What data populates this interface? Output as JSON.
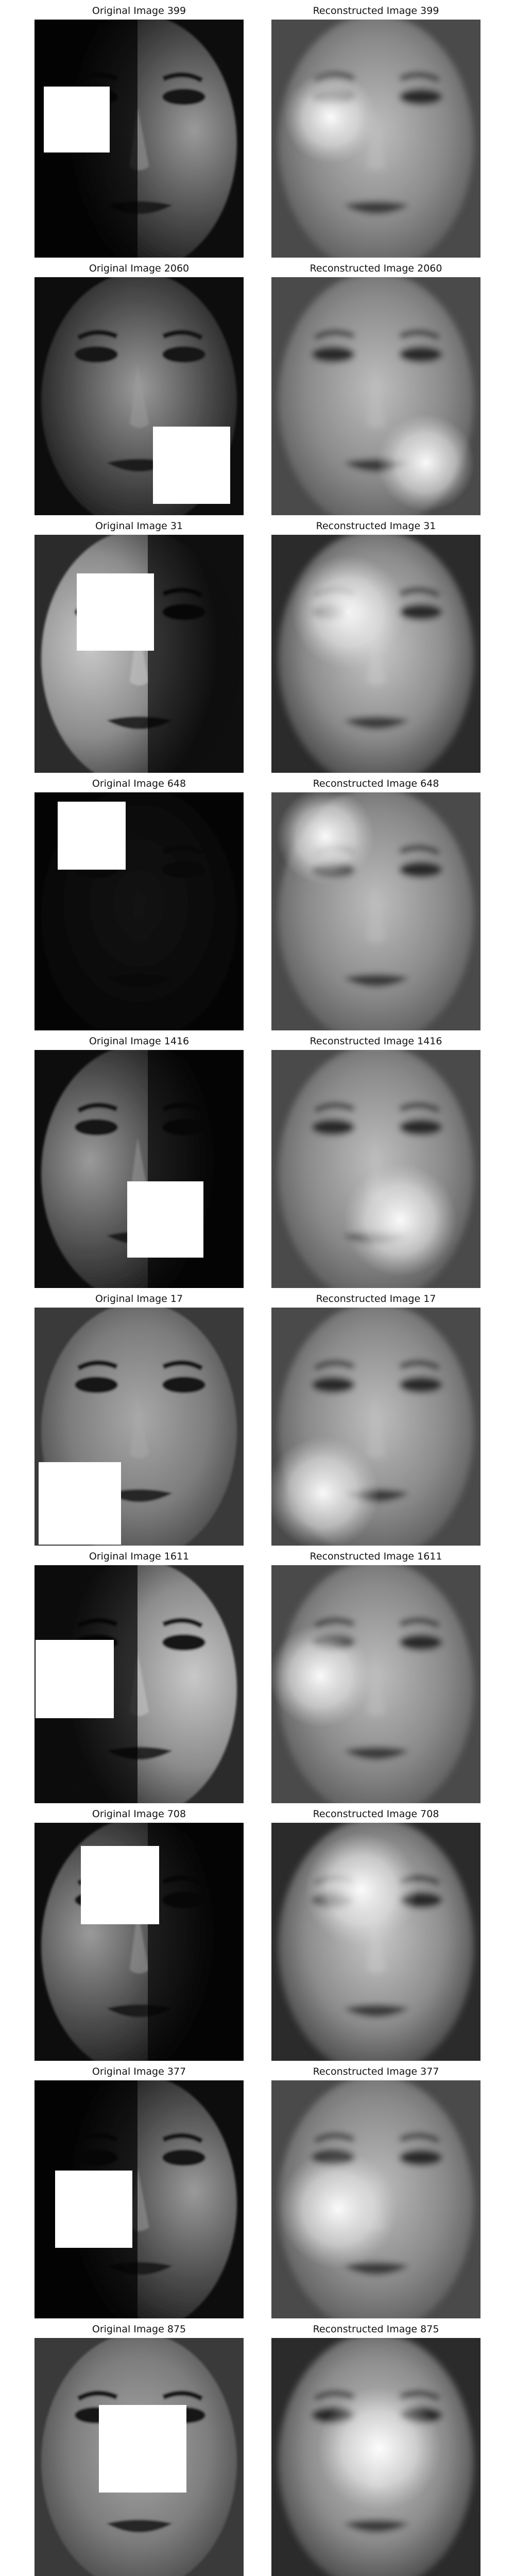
{
  "figure": {
    "rows": [
      {
        "original": {
          "title": "Original Image 399",
          "tone": "dark",
          "light": "right"
        },
        "reconstructed": {
          "title": "Reconstructed Image 399",
          "tone": "mid"
        }
      },
      {
        "original": {
          "title": "Original Image 2060",
          "tone": "dark",
          "light": "center"
        },
        "reconstructed": {
          "title": "Reconstructed Image 2060",
          "tone": "mid"
        }
      },
      {
        "original": {
          "title": "Original Image 31",
          "tone": "bright",
          "light": "left"
        },
        "reconstructed": {
          "title": "Reconstructed Image 31",
          "tone": "bright"
        }
      },
      {
        "original": {
          "title": "Original Image 648",
          "tone": "very-dark",
          "light": "none"
        },
        "reconstructed": {
          "title": "Reconstructed Image 648",
          "tone": "mid"
        }
      },
      {
        "original": {
          "title": "Original Image 1416",
          "tone": "dark",
          "light": "left"
        },
        "reconstructed": {
          "title": "Reconstructed Image 1416",
          "tone": "mid"
        }
      },
      {
        "original": {
          "title": "Original Image 17",
          "tone": "even",
          "light": "even"
        },
        "reconstructed": {
          "title": "Reconstructed Image 17",
          "tone": "mid"
        }
      },
      {
        "original": {
          "title": "Original Image 1611",
          "tone": "bright",
          "light": "right"
        },
        "reconstructed": {
          "title": "Reconstructed Image 1611",
          "tone": "mid"
        }
      },
      {
        "original": {
          "title": "Original Image 708",
          "tone": "dark",
          "light": "left"
        },
        "reconstructed": {
          "title": "Reconstructed Image 708",
          "tone": "bright"
        }
      },
      {
        "original": {
          "title": "Original Image 377",
          "tone": "dark",
          "light": "right"
        },
        "reconstructed": {
          "title": "Reconstructed Image 377",
          "tone": "mid"
        }
      },
      {
        "original": {
          "title": "Original Image 875",
          "tone": "even",
          "light": "even"
        },
        "reconstructed": {
          "title": "Reconstructed Image 875",
          "tone": "bright"
        }
      }
    ]
  }
}
